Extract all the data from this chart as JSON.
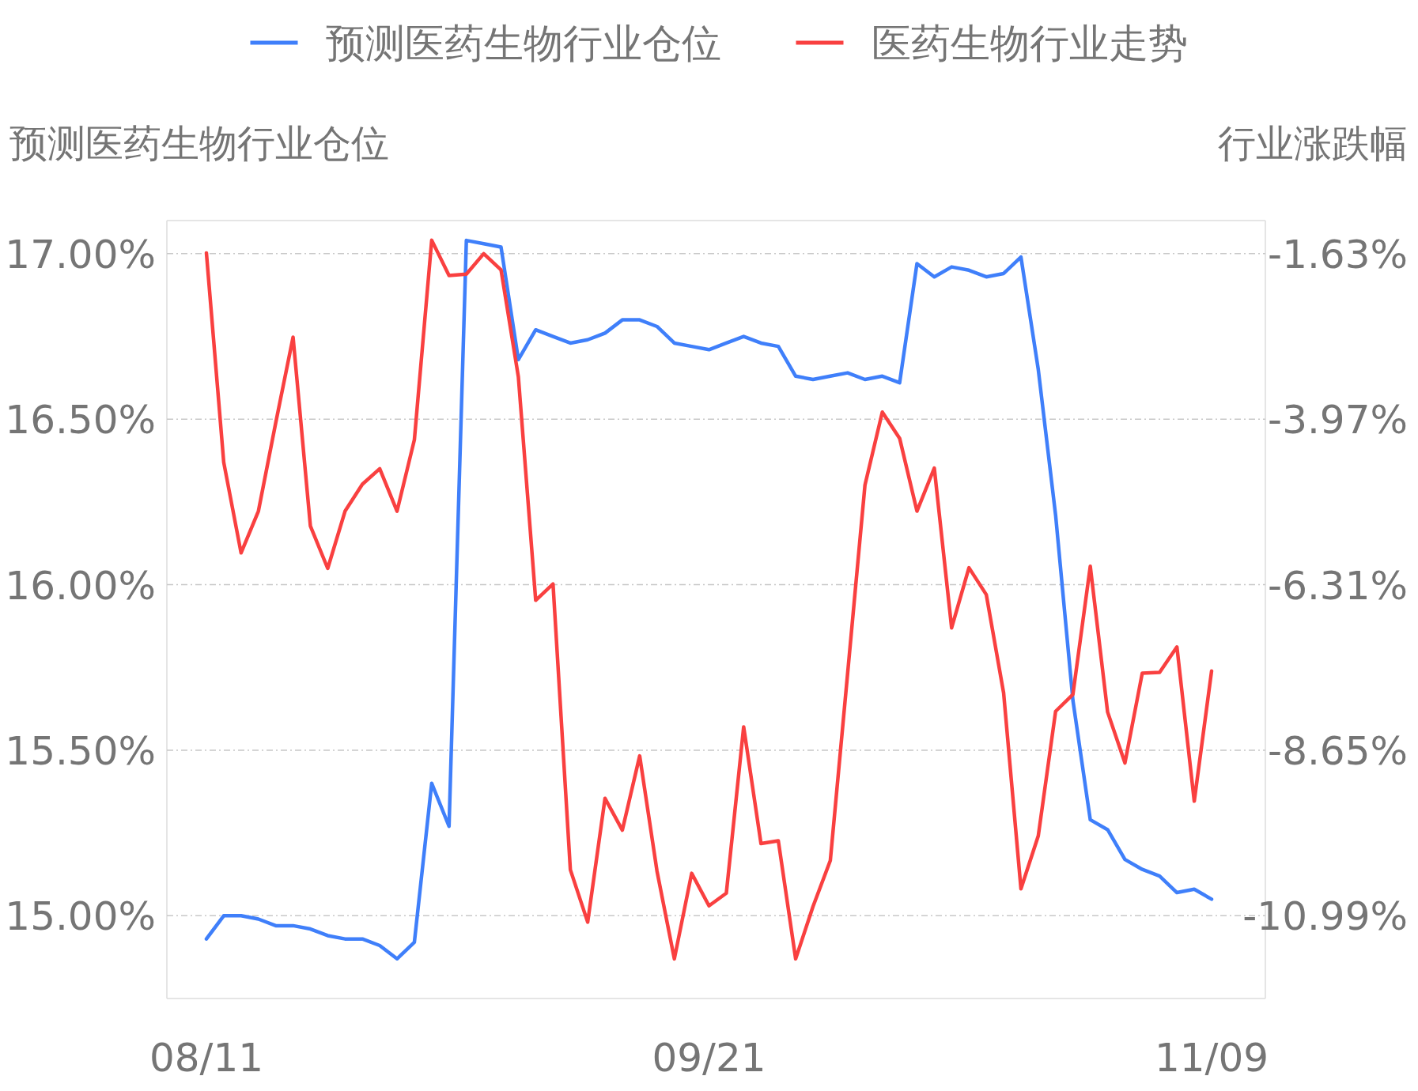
{
  "chart_data": {
    "type": "line",
    "ylabel": "预测医药生物行业仓位",
    "y2label": "行业涨跌幅",
    "legend": "top",
    "grid": "y",
    "categories": [
      "08/11",
      null,
      null,
      null,
      null,
      null,
      null,
      null,
      null,
      null,
      null,
      null,
      null,
      null,
      null,
      null,
      null,
      null,
      null,
      null,
      null,
      null,
      null,
      null,
      null,
      null,
      null,
      null,
      null,
      "09/21",
      null,
      null,
      null,
      null,
      null,
      null,
      null,
      null,
      null,
      null,
      null,
      null,
      null,
      null,
      null,
      null,
      null,
      null,
      null,
      null,
      null,
      null,
      null,
      null,
      null,
      null,
      null,
      null,
      "11/09"
    ],
    "ylim": [
      14.75,
      17.1
    ],
    "yticks": [
      {
        "value": 15,
        "label": "15.00%"
      },
      {
        "value": 15.5,
        "label": "15.50%"
      },
      {
        "value": 16,
        "label": "16.00%"
      },
      {
        "value": 16.5,
        "label": "16.50%"
      },
      {
        "value": 17,
        "label": "17.00%"
      }
    ],
    "y2lim": [
      -12.16,
      -1.162
    ],
    "y2ticks": [
      {
        "value": -10.99,
        "label": "-10.99%"
      },
      {
        "value": -8.65,
        "label": "-8.65%"
      },
      {
        "value": -6.31,
        "label": "-6.31%"
      },
      {
        "value": -3.97,
        "label": "-3.97%"
      },
      {
        "value": -1.63,
        "label": "-1.63%"
      }
    ],
    "series": [
      {
        "name": "预测医药生物行业仓位",
        "color": "#3f7ffa",
        "values": [
          14.93,
          15.0,
          15.0,
          14.99,
          14.97,
          14.97,
          14.96,
          14.94,
          14.93,
          14.93,
          14.91,
          14.87,
          14.92,
          15.4,
          15.27,
          17.04,
          17.03,
          17.02,
          16.68,
          16.77,
          16.75,
          16.73,
          16.74,
          16.76,
          16.8,
          16.8,
          16.78,
          16.73,
          16.72,
          16.71,
          16.73,
          16.75,
          16.73,
          16.72,
          16.63,
          16.62,
          16.63,
          16.64,
          16.62,
          16.63,
          16.61,
          16.97,
          16.93,
          16.96,
          16.95,
          16.93,
          16.94,
          16.99,
          16.65,
          16.21,
          15.65,
          15.29,
          15.26,
          15.17,
          15.14,
          15.12,
          15.07,
          15.08,
          15.05
        ]
      },
      {
        "name": "医药生物行业走势",
        "color": "#f94040",
        "axis": "y2",
        "values": [
          -1.62,
          -4.58,
          -5.86,
          -5.27,
          -4.02,
          -2.81,
          -5.48,
          -6.08,
          -5.27,
          -4.89,
          -4.67,
          -5.27,
          -4.26,
          -1.44,
          -1.94,
          -1.92,
          -1.63,
          -1.86,
          -3.37,
          -6.53,
          -6.3,
          -10.34,
          -11.08,
          -9.33,
          -9.78,
          -8.73,
          -10.36,
          -11.6,
          -10.39,
          -10.85,
          -10.67,
          -8.32,
          -9.97,
          -9.93,
          -11.6,
          -10.86,
          -10.21,
          -7.56,
          -4.9,
          -3.87,
          -4.24,
          -5.27,
          -4.66,
          -6.92,
          -6.07,
          -6.45,
          -7.84,
          -10.61,
          -9.86,
          -8.1,
          -7.86,
          -6.05,
          -8.11,
          -8.83,
          -7.56,
          -7.55,
          -7.19,
          -9.37,
          -7.53
        ]
      }
    ]
  }
}
